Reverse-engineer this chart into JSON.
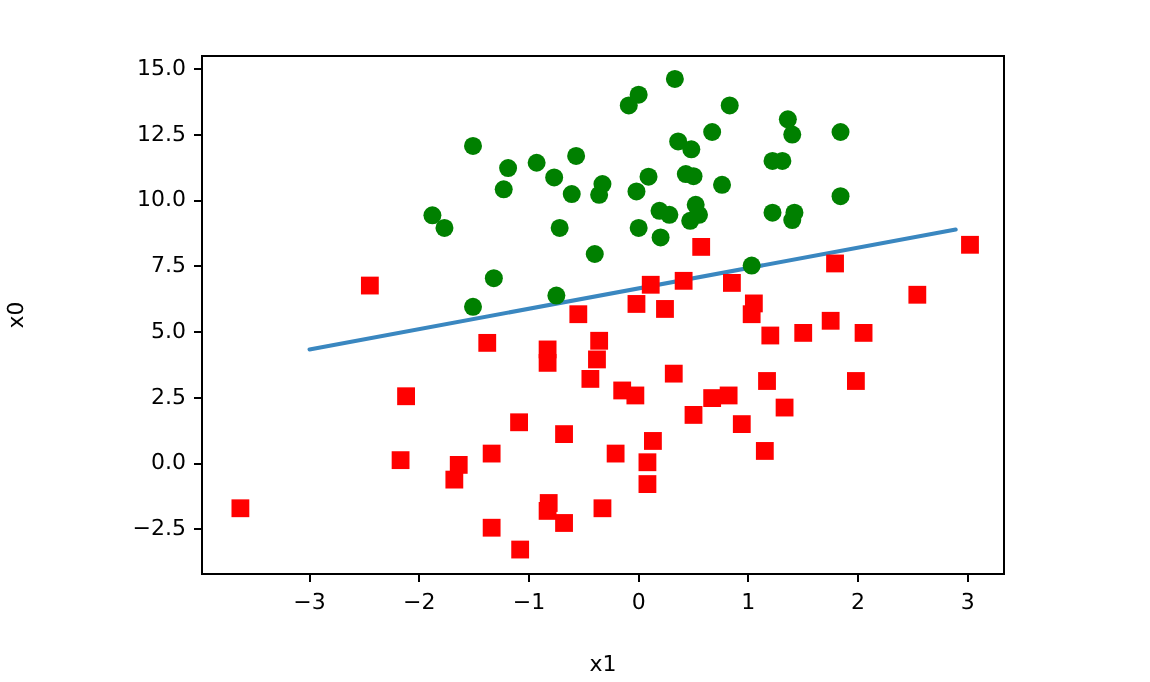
{
  "chart_data": {
    "type": "scatter",
    "xlabel": "x1",
    "ylabel": "x0",
    "grid": false,
    "legend": false,
    "xlim": [
      -3.98,
      3.33
    ],
    "xticks": [
      {
        "value": -3,
        "label": "−3"
      },
      {
        "value": -2,
        "label": "−2"
      },
      {
        "value": -1,
        "label": "−1"
      },
      0,
      1,
      2,
      3
    ],
    "ylim": [
      -4.2,
      15.5
    ],
    "yticks": [
      {
        "value": -2.5,
        "label": "−2.5"
      },
      {
        "value": 0,
        "label": "0.0"
      },
      {
        "value": 2.5,
        "label": "2.5"
      },
      {
        "value": 5,
        "label": "5.0"
      },
      {
        "value": 7.5,
        "label": "7.5"
      },
      {
        "value": 10,
        "label": "10.0"
      },
      {
        "value": 12.5,
        "label": "12.5"
      },
      {
        "value": 15,
        "label": "15.0"
      }
    ],
    "series": [
      {
        "type": "scatter",
        "marker": "circle",
        "color": "#008000",
        "x": [
          -1.51,
          -1.19,
          -0.93,
          -0.57,
          -1.23,
          -0.77,
          -0.61,
          -0.33,
          -0.36,
          -1.88,
          -1.77,
          -0.72,
          -0.4,
          -1.32,
          -0.75,
          -1.51,
          0.33,
          0,
          -0.09,
          0.83,
          1.36,
          1.4,
          1.84,
          0.67,
          0.36,
          0.48,
          1.22,
          1.31,
          0.43,
          0.5,
          0.09,
          0.76,
          -0.02,
          0.19,
          0.28,
          0.52,
          0.55,
          0.47,
          1.22,
          1.42,
          1.4,
          1.84,
          0,
          0.2,
          1.03
        ],
        "values": [
          12.08,
          11.24,
          11.44,
          11.7,
          10.43,
          10.88,
          10.25,
          10.63,
          10.22,
          9.44,
          8.96,
          8.96,
          7.97,
          7.05,
          6.39,
          5.96,
          14.63,
          14.03,
          13.62,
          13.62,
          13.09,
          12.51,
          12.61,
          12.61,
          12.25,
          11.95,
          11.51,
          11.51,
          11.01,
          10.93,
          10.91,
          10.6,
          10.35,
          9.61,
          9.46,
          9.84,
          9.46,
          9.23,
          9.54,
          9.54,
          9.26,
          10.17,
          8.96,
          8.6,
          7.53
        ]
      },
      {
        "type": "scatter",
        "marker": "square",
        "color": "#ff0000",
        "x": [
          -2.45,
          -0.55,
          0.57,
          1.79,
          3.02,
          0.11,
          0.41,
          0.85,
          -0.02,
          0.24,
          1.05,
          1.03,
          2.54,
          -1.38,
          -0.83,
          -0.83,
          -0.36,
          -0.38,
          -0.44,
          -0.15,
          -2.12,
          -1.09,
          -0.68,
          -2.17,
          -1.64,
          -1.68,
          -1.34,
          -0.21,
          -3.63,
          -0.82,
          -0.83,
          -0.68,
          -0.33,
          -1.34,
          -1.08,
          1.2,
          1.5,
          1.75,
          2.05,
          0.32,
          -0.03,
          1.17,
          1.98,
          0.67,
          0.82,
          0.5,
          1.33,
          0.94,
          0.13,
          0.08,
          0.08,
          1.15
        ],
        "values": [
          6.77,
          5.68,
          8.24,
          7.61,
          8.32,
          6.8,
          6.95,
          6.87,
          6.07,
          5.88,
          6.09,
          5.68,
          6.42,
          4.59,
          4.34,
          3.83,
          4.67,
          3.96,
          3.22,
          2.78,
          2.56,
          1.57,
          1.12,
          0.13,
          -0.05,
          -0.61,
          0.38,
          0.38,
          -1.7,
          -1.5,
          -1.8,
          -2.26,
          -1.7,
          -2.44,
          -3.27,
          4.87,
          4.97,
          5.43,
          4.97,
          3.42,
          2.59,
          3.14,
          3.14,
          2.49,
          2.59,
          1.85,
          2.13,
          1.5,
          0.86,
          0.05,
          -0.78,
          0.48
        ]
      },
      {
        "type": "line",
        "marker": "none",
        "line_style": "solid",
        "color": "#3a87c0",
        "x": [
          -3,
          2.89
        ],
        "values": [
          4.34,
          8.9
        ]
      }
    ]
  }
}
